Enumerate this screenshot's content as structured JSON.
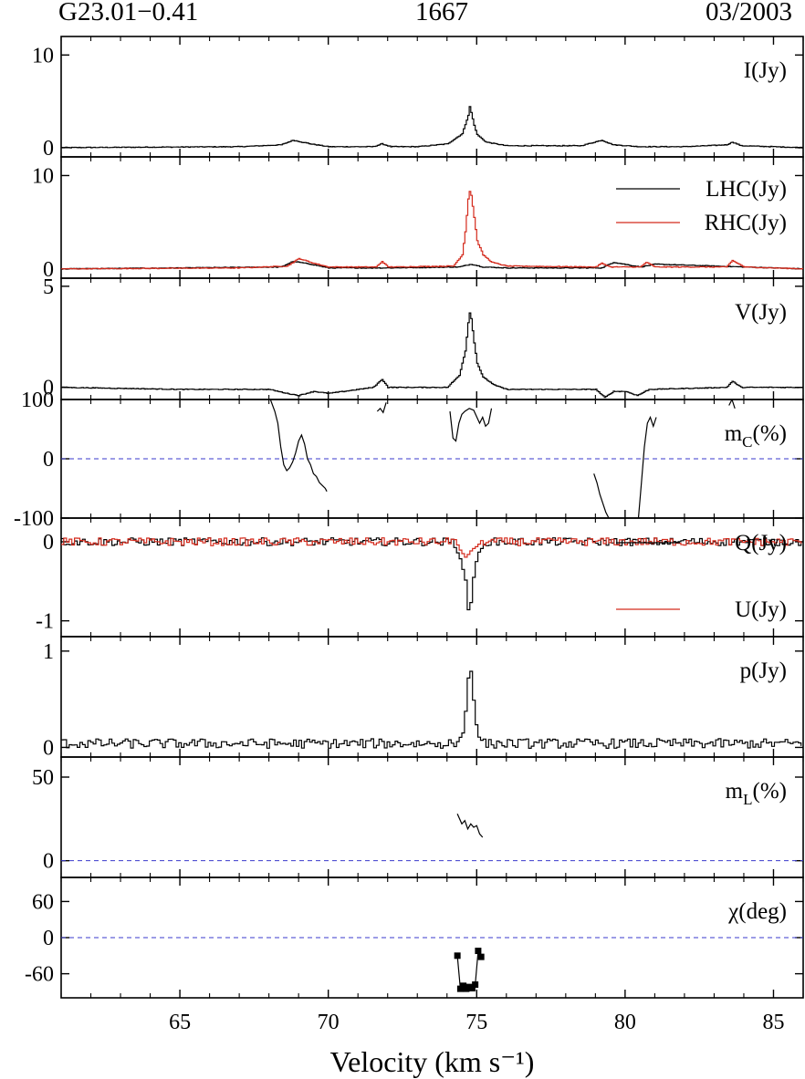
{
  "header": {
    "source": "G23.01−0.41",
    "line": "1667",
    "date": "03/2003"
  },
  "colors": {
    "lhc": "#000000",
    "rhc": "#d42a1c",
    "q": "#000000",
    "u": "#d42a1c",
    "zero_line": "#3a3acc"
  },
  "chart_data": {
    "type": "line",
    "xlabel": "Velocity (km s⁻¹)",
    "xlim": [
      61,
      86
    ],
    "xticks": [
      65,
      70,
      75,
      80,
      85
    ],
    "panels": [
      {
        "id": "stokes-i",
        "label_main": "I(Jy)",
        "label_sub": "",
        "label_suffix": "",
        "ylim": [
          -1,
          12
        ],
        "yticks": [
          0,
          10
        ],
        "ytick_labels": [
          "0",
          "10"
        ],
        "series": [
          {
            "style": "step",
            "color_key": "lhc",
            "x": [
              61,
              67,
              68.4,
              68.8,
              69.4,
              70,
              71.5,
              71.8,
              72.1,
              73,
              74,
              74.5,
              74.7,
              74.75,
              74.8,
              74.9,
              75,
              75.3,
              76,
              78.5,
              79.2,
              79.6,
              80.5,
              82,
              83.4,
              83.6,
              83.9,
              86
            ],
            "y": [
              0,
              0.1,
              0.3,
              0.8,
              0.4,
              0.1,
              0.1,
              0.4,
              0.1,
              0.1,
              0.4,
              1.5,
              3.5,
              4.4,
              3.8,
              2.4,
              1.4,
              0.6,
              0.2,
              0.2,
              0.8,
              0.3,
              0.1,
              0.1,
              0.3,
              0.6,
              0.2,
              0
            ]
          }
        ]
      },
      {
        "id": "lhc-rhc",
        "label_main": "",
        "label_sub": "",
        "label_suffix": "",
        "ylim": [
          -1,
          12
        ],
        "yticks": [
          0,
          10
        ],
        "ytick_labels": [
          "0",
          "10"
        ],
        "legend": [
          {
            "label": "LHC(Jy)",
            "color_key": "lhc"
          },
          {
            "label": "RHC(Jy)",
            "color_key": "rhc"
          }
        ],
        "series": [
          {
            "style": "step",
            "color_key": "lhc",
            "x": [
              61,
              65,
              68.4,
              68.8,
              69.4,
              70,
              72,
              74.4,
              74.8,
              75.2,
              76,
              79.2,
              79.6,
              80.5,
              81,
              86
            ],
            "y": [
              0,
              0.1,
              0.2,
              0.8,
              0.5,
              0.1,
              0.1,
              0.2,
              0.5,
              0.2,
              0.1,
              0.1,
              0.7,
              0.2,
              0.5,
              0
            ]
          },
          {
            "style": "step",
            "color_key": "rhc",
            "x": [
              61,
              67,
              68.6,
              69,
              69.5,
              70,
              71.6,
              71.8,
              72,
              74.2,
              74.5,
              74.6,
              74.7,
              74.75,
              74.8,
              74.9,
              75,
              75.2,
              75.5,
              76,
              79,
              79.2,
              79.5,
              80.5,
              80.7,
              81,
              83.4,
              83.6,
              84,
              86
            ],
            "y": [
              0,
              0.1,
              0.3,
              1.1,
              0.6,
              0.2,
              0.2,
              0.8,
              0.2,
              0.3,
              1.5,
              4,
              7.5,
              8.3,
              7.9,
              5.5,
              3,
              1.5,
              0.7,
              0.3,
              0.2,
              0.6,
              0.2,
              0.2,
              0.7,
              0.2,
              0.2,
              0.9,
              0.2,
              0
            ]
          }
        ]
      },
      {
        "id": "stokes-v",
        "label_main": "V(Jy)",
        "label_sub": "",
        "label_suffix": "",
        "ylim": [
          -0.6,
          5.4
        ],
        "yticks": [
          0,
          5
        ],
        "ytick_labels": [
          "0",
          "5"
        ],
        "series": [
          {
            "style": "step",
            "color_key": "lhc",
            "x": [
              61,
              65,
              68,
              68.6,
              69,
              69.5,
              70,
              71.5,
              71.8,
              72,
              74,
              74.4,
              74.6,
              74.7,
              74.75,
              74.8,
              74.9,
              75,
              75.2,
              75.6,
              76,
              79,
              79.3,
              79.6,
              80,
              80.4,
              80.8,
              83.4,
              83.6,
              83.9,
              86
            ],
            "y": [
              0,
              -0.1,
              -0.1,
              -0.3,
              -0.4,
              -0.2,
              -0.3,
              0,
              0.4,
              0,
              0,
              0.6,
              1.8,
              3.2,
              3.7,
              3.4,
              2.2,
              1.2,
              0.5,
              0.1,
              -0.1,
              -0.1,
              -0.5,
              -0.2,
              -0.2,
              -0.4,
              -0.1,
              0,
              0.3,
              0,
              0
            ]
          }
        ]
      },
      {
        "id": "frac-circular",
        "label_main": "m",
        "label_sub": "C",
        "label_suffix": "(%)",
        "ylim": [
          -100,
          100
        ],
        "yticks": [
          -100,
          0,
          100
        ],
        "ytick_labels": [
          "-100",
          "0",
          "100"
        ],
        "zero_line": true,
        "series": [
          {
            "style": "line",
            "color_key": "lhc",
            "x": [
              68.05,
              68.2,
              68.3,
              68.4,
              68.5,
              68.6,
              68.7,
              68.8,
              68.9,
              69,
              69.1,
              69.2,
              69.3,
              69.4,
              69.5,
              69.6,
              69.7,
              69.8,
              69.9,
              69.95
            ],
            "y": [
              100,
              80,
              60,
              20,
              -10,
              -20,
              -15,
              -5,
              10,
              30,
              40,
              25,
              0,
              -10,
              -25,
              -30,
              -40,
              -45,
              -50,
              -55
            ]
          },
          {
            "style": "line",
            "color_key": "lhc",
            "x": [
              71.65,
              71.75,
              71.85,
              71.95
            ],
            "y": [
              80,
              85,
              78,
              95
            ]
          },
          {
            "style": "line",
            "color_key": "lhc",
            "x": [
              74.1,
              74.2,
              74.3,
              74.4,
              74.5,
              74.6,
              74.75,
              74.9,
              75.1,
              75.2,
              75.3,
              75.4,
              75.5
            ],
            "y": [
              80,
              35,
              30,
              60,
              75,
              80,
              85,
              82,
              60,
              70,
              55,
              60,
              85
            ]
          },
          {
            "style": "line",
            "color_key": "lhc",
            "x": [
              78.95,
              79.05,
              79.15,
              79.25,
              79.35,
              79.45
            ],
            "y": [
              -25,
              -40,
              -60,
              -75,
              -90,
              -100
            ]
          },
          {
            "style": "line",
            "color_key": "lhc",
            "x": [
              80.45,
              80.55,
              80.65,
              80.75,
              80.85,
              80.95,
              81.05
            ],
            "y": [
              -100,
              -40,
              20,
              60,
              70,
              55,
              70
            ]
          },
          {
            "style": "line",
            "color_key": "lhc",
            "x": [
              83.5,
              83.6,
              83.7
            ],
            "y": [
              90,
              100,
              85
            ]
          }
        ]
      },
      {
        "id": "stokes-qu",
        "label_main": "",
        "label_sub": "",
        "label_suffix": "",
        "ylim": [
          -1.2,
          0.3
        ],
        "yticks": [
          -1,
          0
        ],
        "ytick_labels": [
          "-1",
          "0"
        ],
        "legend": [
          {
            "label": "Q(Jy)",
            "color_key": "q"
          },
          {
            "label": "U(Jy)",
            "color_key": "u"
          }
        ],
        "noise": [
          {
            "color_key": "q",
            "amp": 0.05
          },
          {
            "color_key": "u",
            "amp": 0.05
          }
        ],
        "series": [
          {
            "style": "step",
            "color_key": "q",
            "x": [
              74.2,
              74.4,
              74.6,
              74.65,
              74.7,
              74.75,
              74.8,
              74.9,
              75,
              75.2
            ],
            "y": [
              -0.05,
              -0.2,
              -0.5,
              -0.8,
              -0.9,
              -0.88,
              -0.6,
              -0.35,
              -0.15,
              -0.05
            ]
          },
          {
            "style": "step",
            "color_key": "u",
            "x": [
              74.2,
              74.4,
              74.6,
              74.7,
              74.8,
              75,
              75.2
            ],
            "y": [
              0.05,
              -0.1,
              -0.2,
              -0.15,
              -0.1,
              -0.05,
              0.05
            ]
          }
        ]
      },
      {
        "id": "lin-pol",
        "label_main": "p(Jy)",
        "label_sub": "",
        "label_suffix": "",
        "ylim": [
          -0.1,
          1.15
        ],
        "yticks": [
          0,
          1
        ],
        "ytick_labels": [
          "0",
          "1"
        ],
        "noise": [
          {
            "color_key": "lhc",
            "amp": 0.05,
            "base": 0.04
          }
        ],
        "series": [
          {
            "style": "step",
            "color_key": "lhc",
            "x": [
              74.3,
              74.5,
              74.6,
              74.7,
              74.75,
              74.8,
              74.9,
              75,
              75.2
            ],
            "y": [
              0.05,
              0.15,
              0.4,
              0.8,
              0.85,
              0.7,
              0.35,
              0.12,
              0.05
            ]
          }
        ]
      },
      {
        "id": "frac-linear",
        "label_main": "m",
        "label_sub": "L",
        "label_suffix": "(%)",
        "ylim": [
          -10,
          62
        ],
        "yticks": [
          0,
          50
        ],
        "ytick_labels": [
          "0",
          "50"
        ],
        "zero_line": true,
        "series": [
          {
            "style": "line",
            "color_key": "lhc",
            "x": [
              74.35,
              74.5,
              74.6,
              74.7,
              74.8,
              74.9,
              75.0,
              75.1,
              75.2
            ],
            "y": [
              28,
              22,
              24,
              19,
              22,
              20,
              21,
              16,
              14
            ]
          }
        ]
      },
      {
        "id": "pol-angle",
        "label_main": "χ(deg)",
        "label_sub": "",
        "label_suffix": "",
        "ylim": [
          -100,
          100
        ],
        "yticks": [
          -60,
          0,
          60
        ],
        "ytick_labels": [
          "-60",
          "0",
          "60"
        ],
        "zero_line": true,
        "series": [
          {
            "style": "markers",
            "color_key": "lhc",
            "x": [
              74.35,
              74.45,
              74.55,
              74.65,
              74.75,
              74.85,
              74.95,
              75.05,
              75.15
            ],
            "y": [
              -30,
              -85,
              -80,
              -85,
              -82,
              -84,
              -78,
              -22,
              -32
            ]
          }
        ]
      }
    ]
  }
}
